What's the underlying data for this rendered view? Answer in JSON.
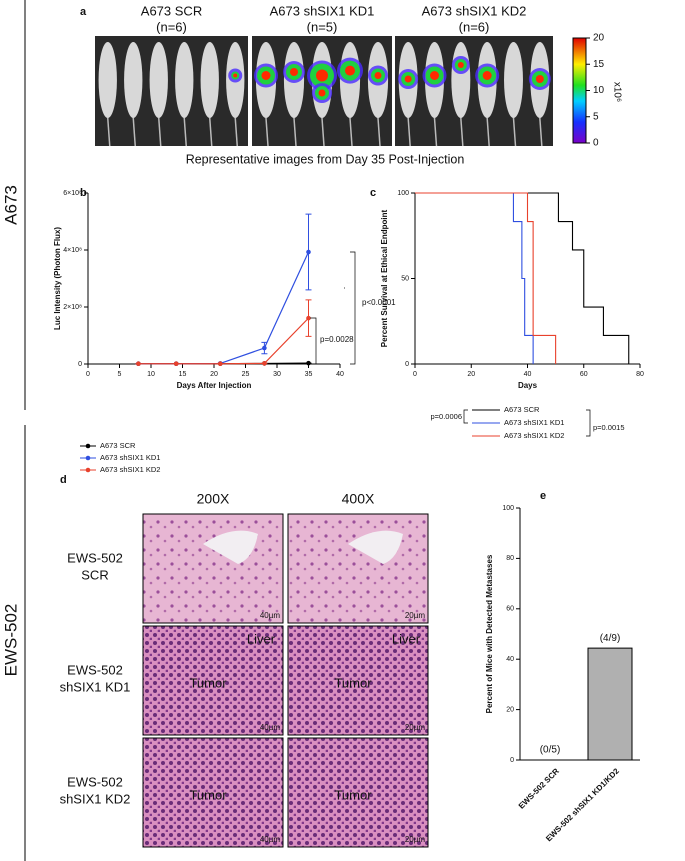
{
  "side_labels": [
    "A673",
    "EWS-502"
  ],
  "panel_a": {
    "label": "a",
    "groups": [
      {
        "title": "A673 SCR",
        "n": "(n=6)"
      },
      {
        "title": "A673 shSIX1 KD1",
        "n": "(n=5)"
      },
      {
        "title": "A673 shSIX1 KD2",
        "n": "(n=6)"
      }
    ],
    "colorbar": {
      "ylim": [
        0,
        20
      ],
      "yticks": [
        0,
        5,
        10,
        15,
        20
      ],
      "label": "x10⁶"
    },
    "caption": "Representative images from Day 35 Post-Injection"
  },
  "panel_d": {
    "label": "d",
    "columns": [
      "200X",
      "400X"
    ],
    "rows": [
      {
        "label": [
          "EWS-502",
          "SCR"
        ],
        "scales": [
          "40µm",
          "20µm"
        ],
        "annotations": [
          [],
          []
        ]
      },
      {
        "label": [
          "EWS-502",
          "shSIX1 KD1"
        ],
        "scales": [
          "40µm",
          "20µm"
        ],
        "annotations": [
          [
            "Tumor",
            "Liver"
          ],
          [
            "Tumor",
            "Liver"
          ]
        ]
      },
      {
        "label": [
          "EWS-502",
          "shSIX1 KD2"
        ],
        "scales": [
          "40µm",
          "20µm"
        ],
        "annotations": [
          [
            "Tumor"
          ],
          [
            "Tumor"
          ]
        ]
      }
    ]
  },
  "chart_data": [
    {
      "type": "line",
      "label": "b",
      "x_label": "Days After Injection",
      "y_label": "Luc Intensity (Photon Flux)",
      "x": [
        8,
        14,
        21,
        28,
        35
      ],
      "series": [
        {
          "name": "A673 SCR",
          "color": "#000000",
          "values": [
            1000000,
            1000000,
            1000000,
            2000000,
            3000000
          ],
          "errors": [
            0,
            0,
            0,
            0,
            0
          ]
        },
        {
          "name": "A673 shSIX1 KD1",
          "color": "#2f4fe0",
          "values": [
            1000000,
            1000000,
            2000000,
            56000000,
            393000000
          ],
          "errors": [
            0,
            0,
            0,
            20000000,
            133000000
          ]
        },
        {
          "name": "A673 shSIX1 KD2",
          "color": "#e8412c",
          "values": [
            1000000,
            1000000,
            1000000,
            2000000,
            161000000
          ],
          "errors": [
            0,
            0,
            0,
            0,
            64000000
          ]
        }
      ],
      "xlim": [
        0,
        40
      ],
      "xticks": [
        0,
        5,
        10,
        15,
        20,
        25,
        30,
        35,
        40
      ],
      "ylim": [
        0,
        600000000
      ],
      "yticks": [
        0,
        {
          "value": 200000000,
          "label": "2×10⁸"
        },
        {
          "value": 400000000,
          "label": "4×10⁸"
        },
        {
          "value": 600000000,
          "label": "6×10⁸"
        }
      ],
      "annotations": [
        "p<0.0001",
        "p=0.0028"
      ]
    },
    {
      "type": "step",
      "label": "c",
      "x_label": "Days",
      "y_label": "Percent Survival at Ethical Endpoint",
      "series": [
        {
          "name": "A673 SCR",
          "color": "#000000",
          "x": [
            0,
            51,
            56,
            60,
            67,
            76
          ],
          "values": [
            100,
            83.3,
            66.7,
            33.3,
            16.7,
            0
          ]
        },
        {
          "name": "A673 shSIX1 KD1",
          "color": "#2f4fe0",
          "x": [
            0,
            35,
            38,
            39,
            42
          ],
          "values": [
            100,
            83.3,
            50,
            16.7,
            0
          ]
        },
        {
          "name": "A673 shSIX1 KD2",
          "color": "#e8412c",
          "x": [
            0,
            40,
            42,
            50
          ],
          "values": [
            100,
            83.3,
            16.7,
            0
          ]
        }
      ],
      "xlim": [
        0,
        80
      ],
      "xticks": [
        0,
        20,
        40,
        60,
        80
      ],
      "ylim": [
        0,
        100
      ],
      "yticks": [
        0,
        50,
        100
      ],
      "annotations": [
        "p=0.0006",
        "p=0.0015"
      ]
    },
    {
      "type": "bar",
      "label": "e",
      "y_label": "Percent of Mice with Detected Metastases",
      "categories": [
        "EWS-502 SCR",
        "EWS-502 shSIX1 KD1/KD2"
      ],
      "values": [
        0,
        44.4
      ],
      "value_labels": [
        "(0/5)",
        "(4/9)"
      ],
      "color": "#b0b0b0",
      "ylim": [
        0,
        100
      ],
      "yticks": [
        0,
        20,
        40,
        60,
        80,
        100
      ]
    }
  ]
}
